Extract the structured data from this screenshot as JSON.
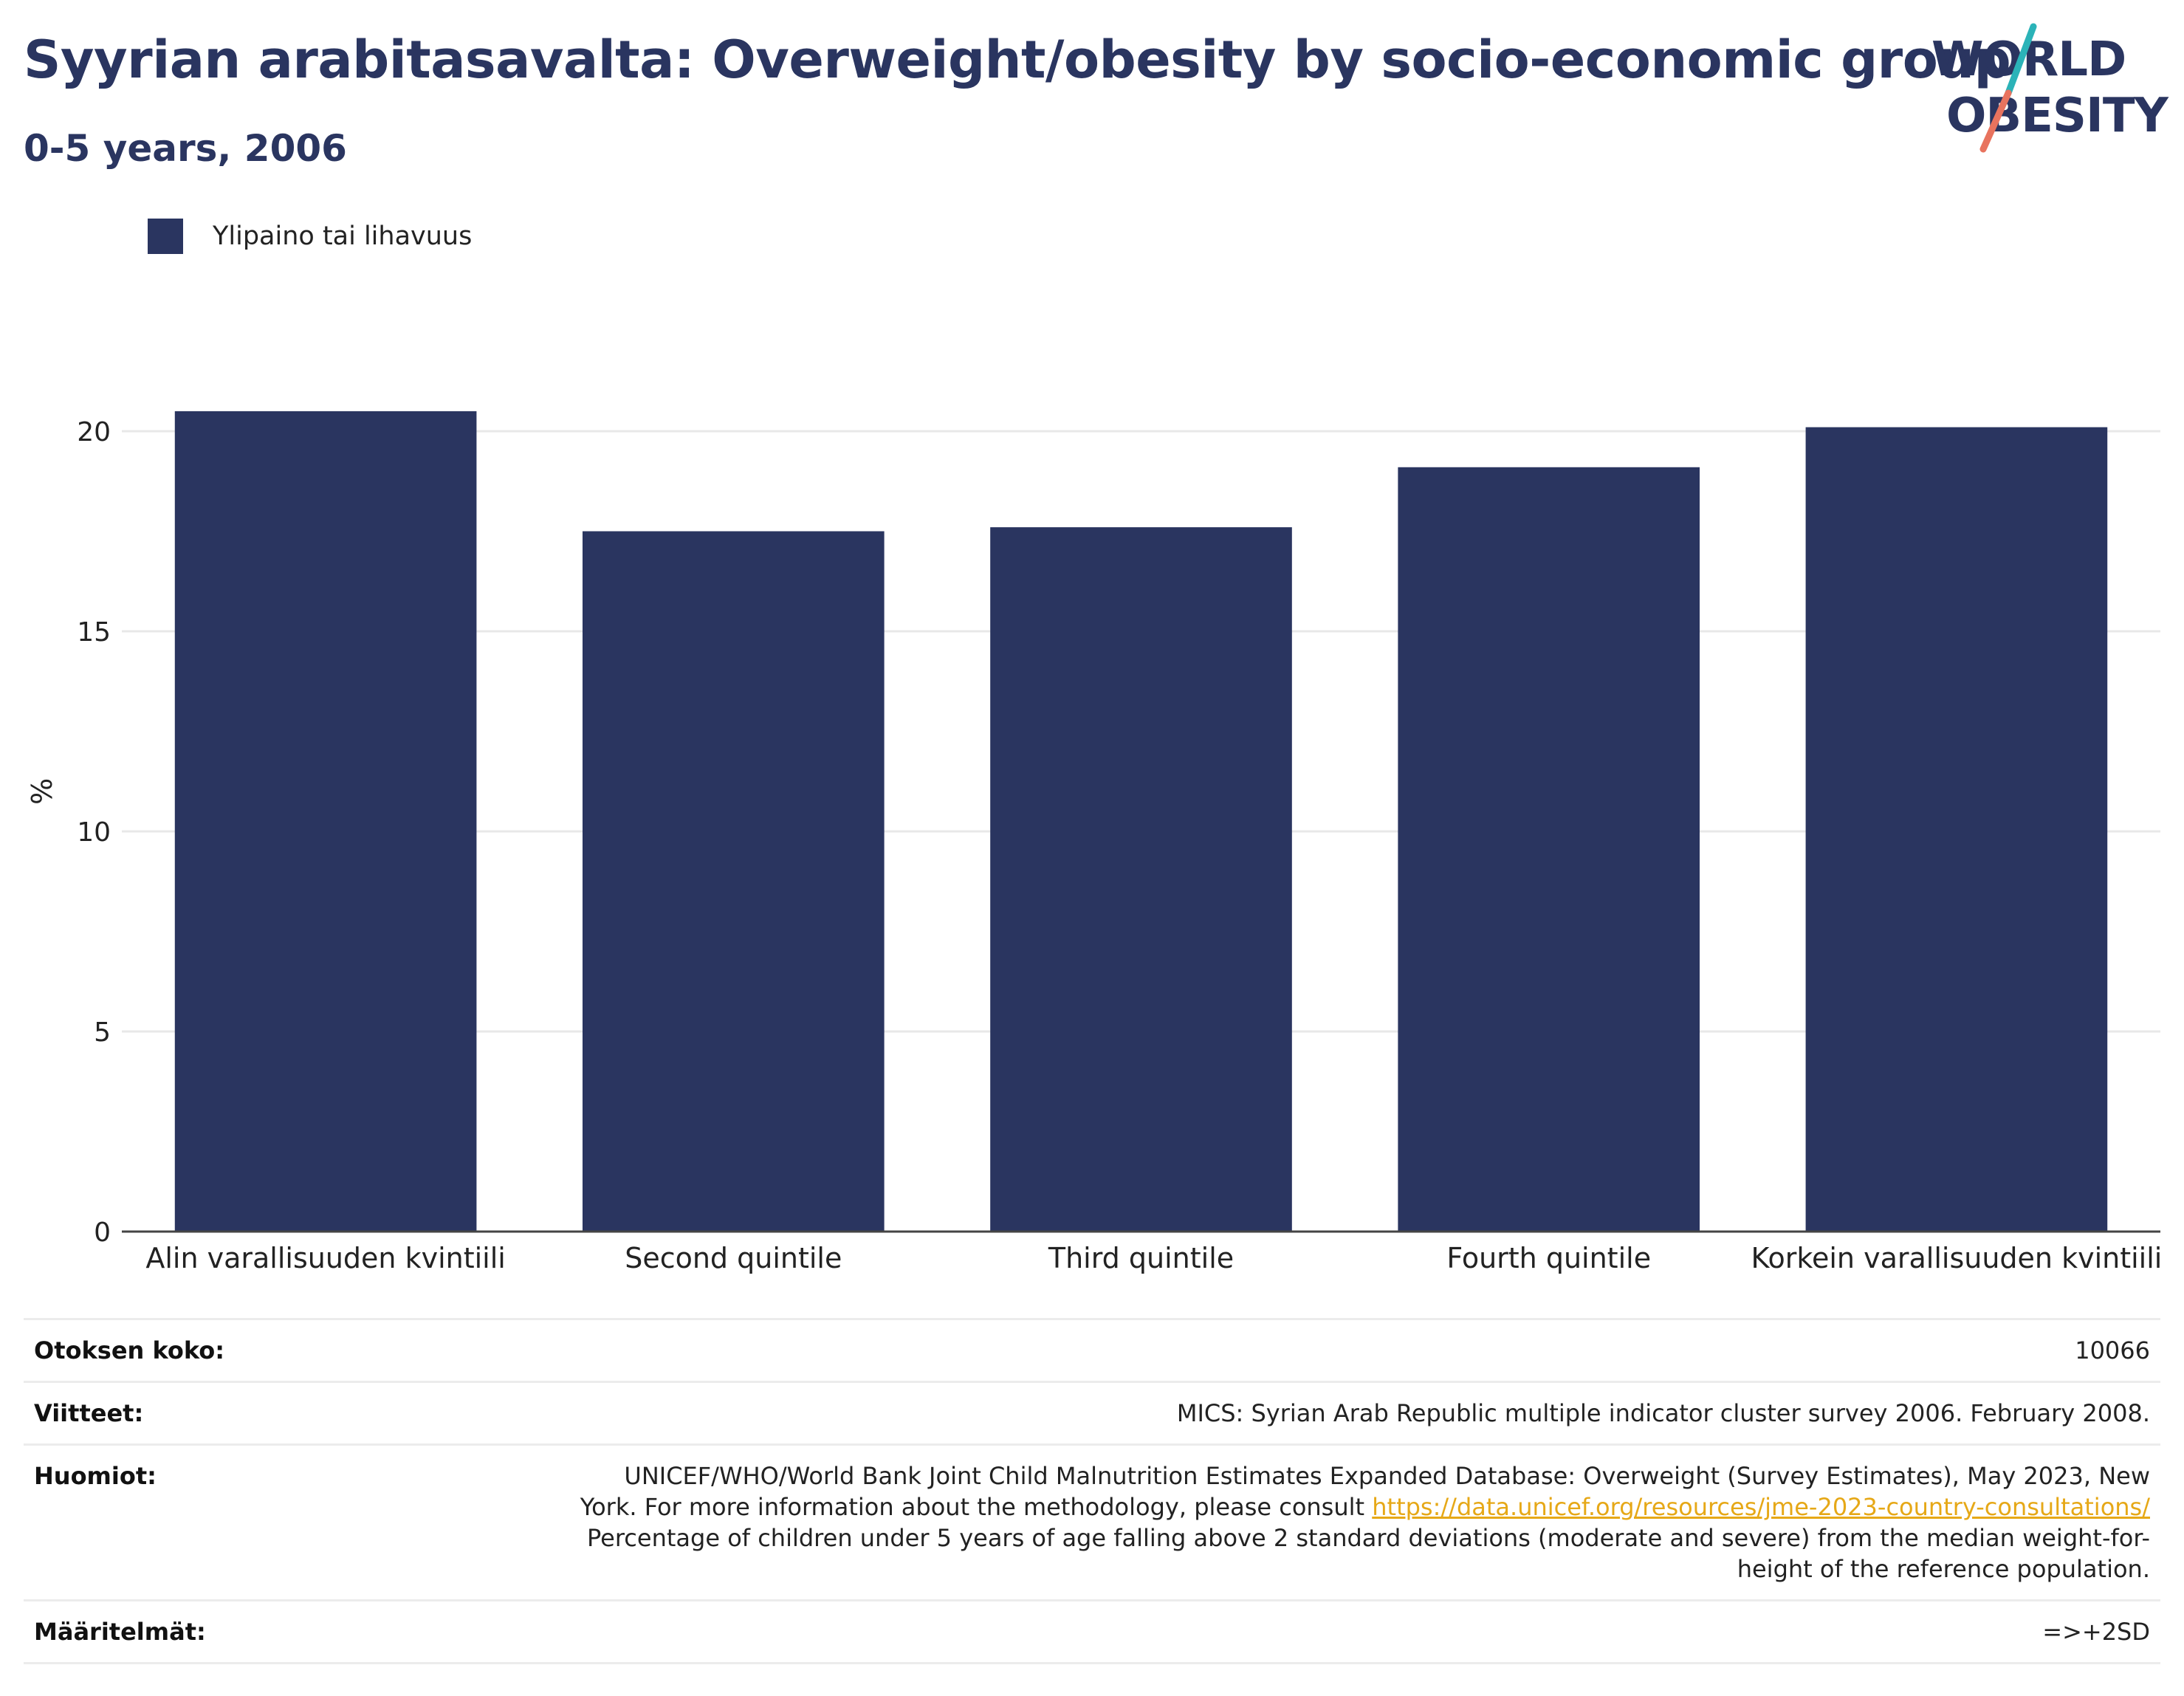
{
  "header": {
    "title": "Syyrian arabitasavalta: Overweight/obesity by socio-economic group",
    "subtitle": "0-5 years, 2006"
  },
  "logo": {
    "line1": "WORLD",
    "line2": "OBESITY",
    "colors": {
      "text": "#2a3560",
      "slash_top": "#2bb3b8",
      "slash_bottom": "#e8735e"
    }
  },
  "legend": {
    "items": [
      {
        "label": "Ylipaino tai lihavuus",
        "color": "#2a3560"
      }
    ]
  },
  "chart_data": {
    "type": "bar",
    "title": "Syyrian arabitasavalta: Overweight/obesity by socio-economic group",
    "subtitle": "0-5 years, 2006",
    "categories": [
      "Alin varallisuuden kvintiili",
      "Second quintile",
      "Third quintile",
      "Fourth quintile",
      "Korkein varallisuuden kvintiili"
    ],
    "series": [
      {
        "name": "Ylipaino tai lihavuus",
        "values": [
          20.5,
          17.5,
          17.6,
          19.1,
          20.1
        ],
        "color": "#2a3560"
      }
    ],
    "xlabel": "",
    "ylabel": "%",
    "ylim": [
      0,
      22
    ],
    "yticks": [
      0,
      5,
      10,
      15,
      20
    ],
    "grid": true,
    "legend_position": "top-left"
  },
  "info": {
    "sample_size": {
      "label": "Otoksen koko:",
      "value": "10066"
    },
    "references": {
      "label": "Viitteet:",
      "value": "MICS: Syrian Arab Republic multiple indicator cluster survey 2006. February 2008."
    },
    "notes": {
      "label": "Huomiot:",
      "line1": "UNICEF/WHO/World Bank Joint Child Malnutrition Estimates Expanded Database: Overweight (Survey Estimates), May 2023, New",
      "line2_prefix": "York. For more information about the methodology, please consult ",
      "link": "https://data.unicef.org/resources/jme-2023-country-consultations/",
      "line3": "Percentage of children under 5 years of age falling above 2 standard deviations (moderate and severe) from the median weight-for-",
      "line4": "height of the reference population."
    },
    "definitions": {
      "label": "Määritelmät:",
      "value": "=>+2SD"
    }
  }
}
